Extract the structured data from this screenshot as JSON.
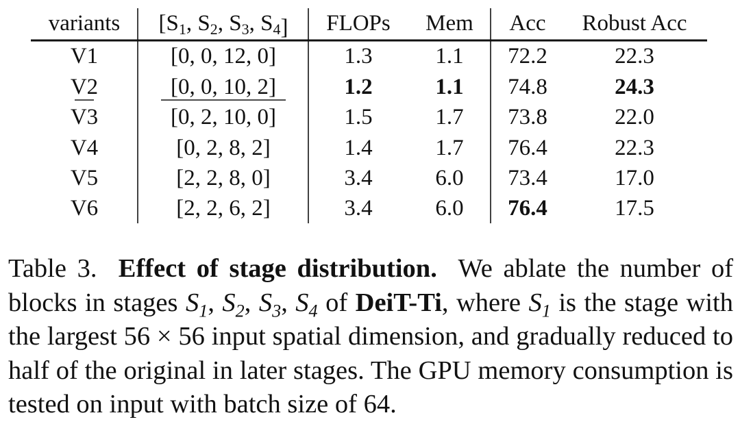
{
  "table": {
    "headers": [
      "variants",
      "[S1, S2, S3, S4]",
      "FLOPs",
      "Mem",
      "Acc",
      "Robust Acc"
    ],
    "rows": [
      {
        "variant": "V1",
        "stages": "[0, 0, 12, 0]",
        "flops": "1.3",
        "mem": "1.1",
        "acc": "72.2",
        "robust_acc": "22.3"
      },
      {
        "variant": "V2",
        "stages": "[0, 0, 10, 2]",
        "flops": "1.2",
        "mem": "1.1",
        "acc": "74.8",
        "robust_acc": "24.3"
      },
      {
        "variant": "V3",
        "stages": "[0, 2, 10, 0]",
        "flops": "1.5",
        "mem": "1.7",
        "acc": "73.8",
        "robust_acc": "22.0"
      },
      {
        "variant": "V4",
        "stages": "[0, 2, 8, 2]",
        "flops": "1.4",
        "mem": "1.7",
        "acc": "76.4",
        "robust_acc": "22.3"
      },
      {
        "variant": "V5",
        "stages": "[2, 2, 8, 0]",
        "flops": "3.4",
        "mem": "6.0",
        "acc": "73.4",
        "robust_acc": "17.0"
      },
      {
        "variant": "V6",
        "stages": "[2, 2, 6, 2]",
        "flops": "3.4",
        "mem": "6.0",
        "acc": "76.4",
        "robust_acc": "17.5"
      }
    ],
    "bold_cells": [
      [
        1,
        "flops"
      ],
      [
        1,
        "mem"
      ],
      [
        1,
        "robust_acc"
      ],
      [
        5,
        "acc"
      ]
    ],
    "underlined_cells": [
      [
        1,
        "variant"
      ],
      [
        1,
        "stages"
      ]
    ]
  },
  "caption": {
    "label": "Table 3.",
    "title": "Effect of stage distribution.",
    "text_1": "We ablate the number of blocks in stages",
    "stage_symbols": [
      "S1",
      "S2",
      "S3",
      "S4"
    ],
    "text_2": "of",
    "model": "DeiT-Ti",
    "text_3": ", where",
    "stage_ref": "S1",
    "text_4": "is the stage with the largest 56 × 56 input spatial dimension, and gradually reduced to half of the original in later stages. The GPU memory consumption is tested on input with batch size of 64."
  }
}
